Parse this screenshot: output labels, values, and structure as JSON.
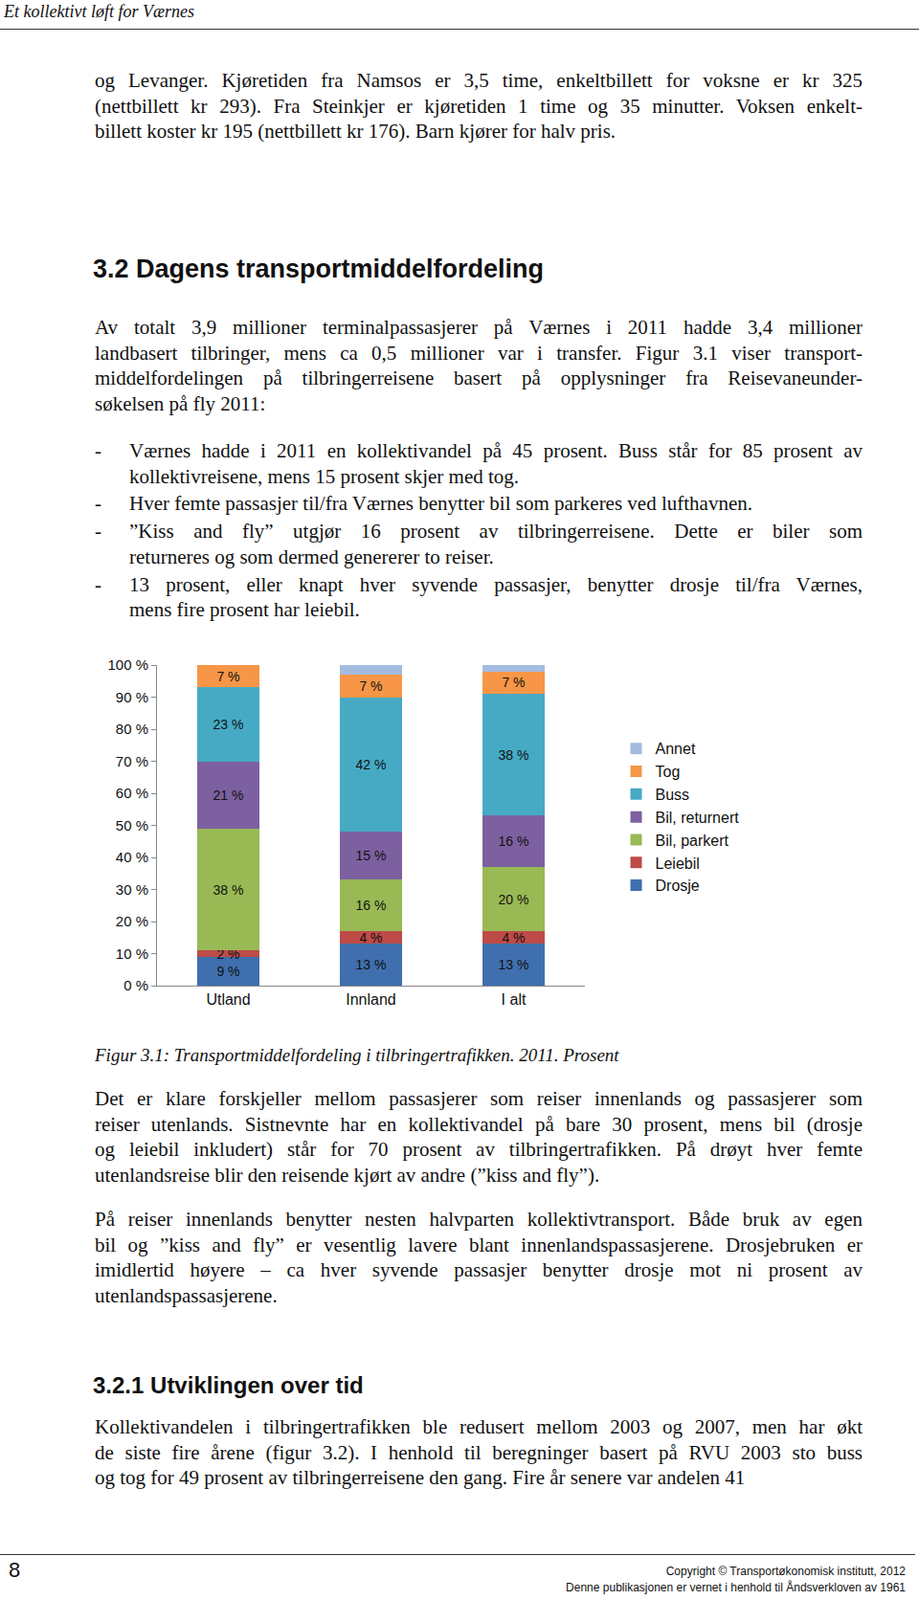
{
  "header": "Et kollektivt løft for Værnes",
  "paragraph_1": [
    "og Levanger. Kjøretiden fra Namsos er 3,5 time, enkeltbillett for voksne er kr 325",
    "(nettbillett kr 293). Fra Steinkjer er kjøretiden 1 time og 35 minutter. Voksen enkelt-",
    "billett koster kr 195 (nettbillett kr 176). Barn kjører for halv pris."
  ],
  "heading_1": "3.2 Dagens transportmiddelfordeling",
  "paragraph_2": [
    "Av totalt 3,9 millioner terminalpassasjerer på Værnes i 2011 hadde 3,4 millioner",
    "landbasert tilbringer, mens ca 0,5 millioner var i transfer. Figur 3.1 viser transport-",
    "middelfordelingen på tilbringerreisene basert på opplysninger fra Reisevaneunder-",
    "søkelsen på fly 2011:"
  ],
  "bullet_mark": "-",
  "bullets": [
    [
      "Værnes hadde i 2011 en kollektivandel på 45 prosent. Buss står for 85 prosent av",
      "kollektivreisene, mens 15 prosent skjer med tog."
    ],
    [
      "Hver femte passasjer til/fra Værnes benytter bil som parkeres ved lufthavnen."
    ],
    [
      "”Kiss and fly” utgjør 16 prosent av tilbringerreisene. Dette er biler som",
      "returneres og som dermed genererer to reiser."
    ],
    [
      "13 prosent, eller knapt hver syvende passasjer, benytter drosje til/fra Værnes,",
      "mens fire prosent har leiebil."
    ]
  ],
  "chart_data": {
    "type": "bar",
    "stacked": true,
    "data_labels": true,
    "legend": "right",
    "grid": false,
    "categories": [
      "Utland",
      "Innland",
      "I alt"
    ],
    "ylim": [
      0,
      100
    ],
    "yticks": [
      {
        "value": 0,
        "label": "0 %"
      },
      {
        "value": 10,
        "label": "10 %"
      },
      {
        "value": 20,
        "label": "20 %"
      },
      {
        "value": 30,
        "label": "30 %"
      },
      {
        "value": 40,
        "label": "40 %"
      },
      {
        "value": 50,
        "label": "50 %"
      },
      {
        "value": 60,
        "label": "60 %"
      },
      {
        "value": 70,
        "label": "70 %"
      },
      {
        "value": 80,
        "label": "80 %"
      },
      {
        "value": 90,
        "label": "90 %"
      },
      {
        "value": 100,
        "label": "100 %"
      }
    ],
    "series": [
      {
        "name": "Drosje",
        "color": "#3f6fae",
        "values": [
          9,
          13,
          13
        ],
        "value_labels": [
          "9 %",
          "13 %",
          "13 %"
        ]
      },
      {
        "name": "Leiebil",
        "color": "#be4b48",
        "values": [
          2,
          4,
          4
        ],
        "value_labels": [
          "2 %",
          "4 %",
          "4 %"
        ]
      },
      {
        "name": "Bil, parkert",
        "color": "#98b954",
        "values": [
          38,
          16,
          20
        ],
        "value_labels": [
          "38 %",
          "16 %",
          "20 %"
        ]
      },
      {
        "name": "Bil, returnert",
        "color": "#7d60a0",
        "values": [
          21,
          15,
          16
        ],
        "value_labels": [
          "21 %",
          "15 %",
          "16 %"
        ]
      },
      {
        "name": "Buss",
        "color": "#46aac5",
        "values": [
          23,
          42,
          38
        ],
        "value_labels": [
          "23 %",
          "42 %",
          "38 %"
        ]
      },
      {
        "name": "Tog",
        "color": "#f79646",
        "values": [
          7,
          7,
          7
        ],
        "value_labels": [
          "7 %",
          "7 %",
          "7 %"
        ]
      },
      {
        "name": "Annet",
        "color": "#a4bbe0",
        "values": [
          0,
          3,
          2
        ],
        "data_labels": false
      }
    ]
  },
  "caption": "Figur 3.1: Transportmiddelfordeling i tilbringertrafikken. 2011. Prosent",
  "paragraph_3": [
    "Det er klare forskjeller mellom passasjerer som reiser innenlands og passasjerer som",
    "reiser utenlands. Sistnevnte har en kollektivandel på bare 30 prosent, mens bil (drosje",
    "og leiebil inkludert) står for 70 prosent av tilbringertrafikken. På drøyt hver femte",
    "utenlandsreise blir den reisende kjørt av andre (”kiss and fly”)."
  ],
  "paragraph_4": [
    "På reiser innenlands benytter nesten halvparten kollektivtransport. Både bruk av egen",
    "bil og ”kiss and fly” er vesentlig lavere blant innenlandspassasjerene. Drosjebruken er",
    "imidlertid høyere – ca hver syvende passasjer benytter drosje mot ni prosent av",
    "utenlandspassasjerene."
  ],
  "heading_2": "3.2.1 Utviklingen over tid",
  "paragraph_5": [
    "Kollektivandelen i tilbringertrafikken ble redusert mellom 2003 og 2007, men har økt",
    "de siste fire årene (figur 3.2). I henhold til beregninger basert på RVU 2003 sto buss",
    "og tog for 49 prosent av tilbringerreisene den gang. Fire år senere var andelen 41"
  ],
  "footer": {
    "page": "8",
    "copyright": "Copyright © Transportøkonomisk institutt, 2012",
    "notice": "Denne publikasjonen er vernet i henhold til Åndsverkloven av 1961"
  }
}
